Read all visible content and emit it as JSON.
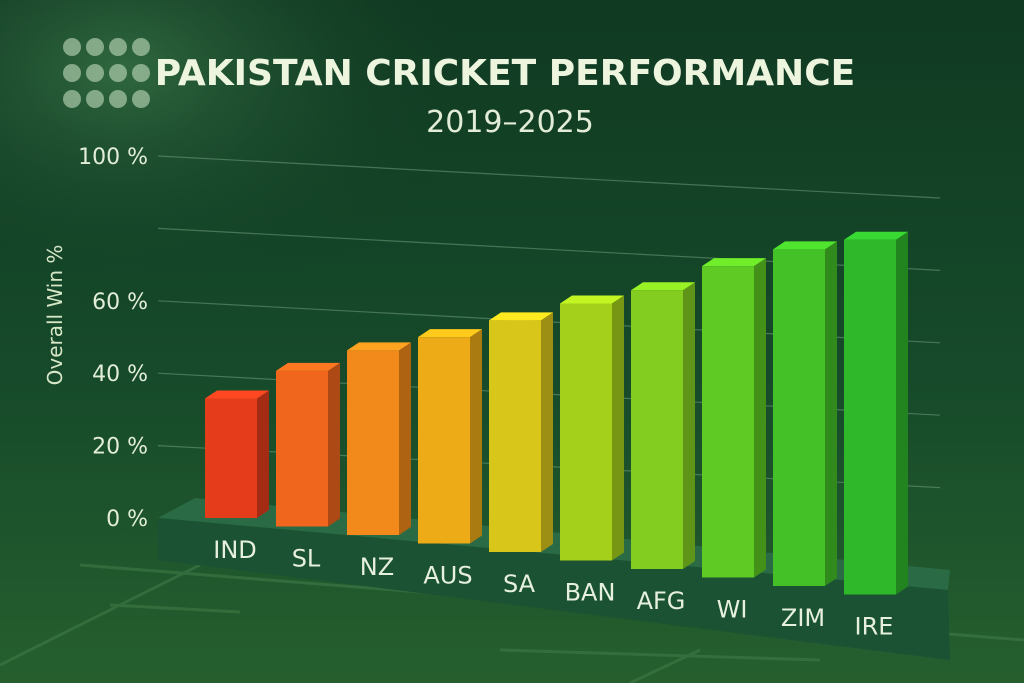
{
  "colors": {
    "background_top": "#0f3a22",
    "background_bottom": "#1f5a2a",
    "text": "#e9f2df",
    "grid": "#6f9a78",
    "base": "#1d5a37"
  },
  "chart_data": {
    "type": "bar",
    "title": "PAKISTAN CRICKET PERFORMANCE",
    "subtitle": "2019–2025",
    "ylabel": "Overall Win %",
    "xlabel": "",
    "ylim": [
      0,
      100
    ],
    "y_ticks": [
      {
        "value": 0,
        "label": "0 %"
      },
      {
        "value": 20,
        "label": "20 %"
      },
      {
        "value": 40,
        "label": "40 %"
      },
      {
        "value": 60,
        "label": "60 %"
      },
      {
        "value": 100,
        "label": "100 %"
      }
    ],
    "grid": true,
    "legend": "none",
    "categories": [
      "IND",
      "SL",
      "NZ",
      "AUS",
      "SA",
      "BAN",
      "AFG",
      "WI",
      "ZIM",
      "IRE"
    ],
    "values": [
      33,
      43,
      51,
      57,
      64,
      71,
      77,
      86,
      93,
      98
    ],
    "bar_colors": [
      "#e53d1c",
      "#f0661c",
      "#f28a1b",
      "#ecab17",
      "#d9c61a",
      "#a4d01c",
      "#82cd20",
      "#5fca24",
      "#43c127",
      "#2fb82a"
    ]
  }
}
